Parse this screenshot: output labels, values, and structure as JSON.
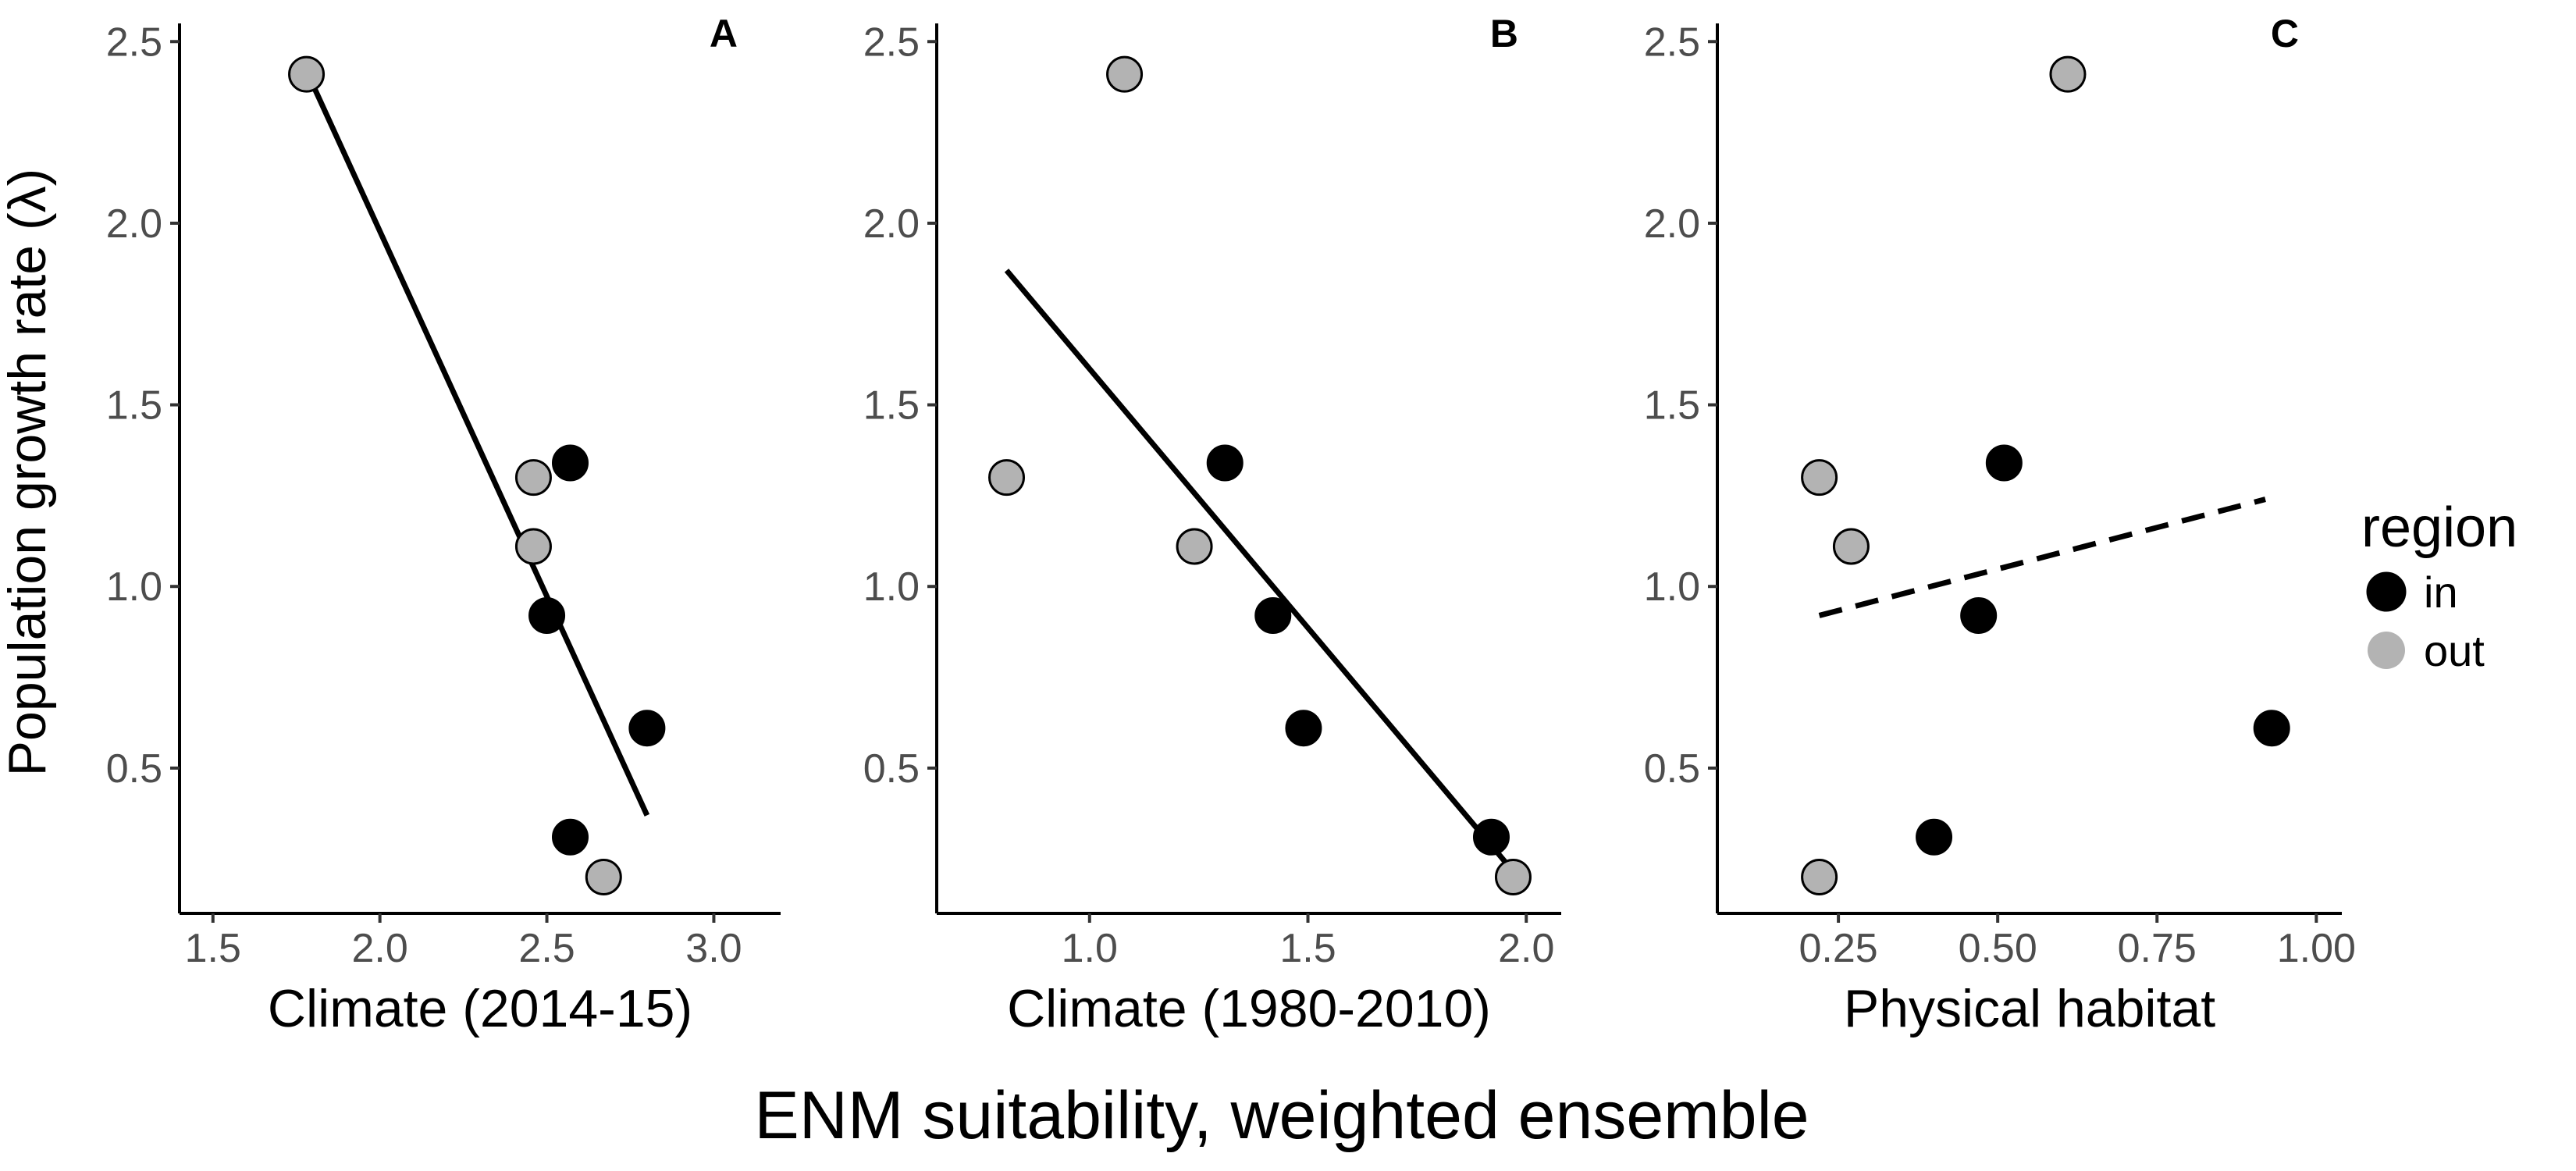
{
  "figure": {
    "ylabel": "Population growth rate (λ)",
    "xlabel": "ENM suitability, weighted ensemble",
    "legend": {
      "title": "region",
      "entries": [
        {
          "label": "in",
          "color": "#000000"
        },
        {
          "label": "out",
          "color": "#b3b3b3"
        }
      ]
    }
  },
  "colors": {
    "in": "#000000",
    "out": "#b3b3b3",
    "outline": "#000000",
    "fit": "#000000"
  },
  "chart_data": [
    {
      "type": "scatter",
      "panel": "A",
      "xlabel": "Climate (2014-15)",
      "ylabel": "Population growth rate (λ)",
      "xlim": [
        1.4,
        3.2
      ],
      "ylim": [
        0.1,
        2.55
      ],
      "xticks": [
        1.5,
        2.0,
        2.5,
        3.0
      ],
      "xtick_labels": [
        "1.5",
        "2.0",
        "2.5",
        "3.0"
      ],
      "yticks": [
        0.5,
        1.0,
        1.5,
        2.0,
        2.5
      ],
      "ytick_labels": [
        "0.5",
        "1.0",
        "1.5",
        "2.0",
        "2.5"
      ],
      "grid": false,
      "points": [
        {
          "x": 1.78,
          "y": 2.41,
          "region": "out"
        },
        {
          "x": 2.46,
          "y": 1.3,
          "region": "out"
        },
        {
          "x": 2.46,
          "y": 1.11,
          "region": "out"
        },
        {
          "x": 2.67,
          "y": 0.2,
          "region": "out"
        },
        {
          "x": 2.57,
          "y": 1.34,
          "region": "in"
        },
        {
          "x": 2.5,
          "y": 0.92,
          "region": "in"
        },
        {
          "x": 2.8,
          "y": 0.61,
          "region": "in"
        },
        {
          "x": 2.57,
          "y": 0.31,
          "region": "in"
        }
      ],
      "fit": {
        "x1": 1.78,
        "y1": 2.42,
        "x2": 2.8,
        "y2": 0.37,
        "style": "solid"
      }
    },
    {
      "type": "scatter",
      "panel": "B",
      "xlabel": "Climate (1980-2010)",
      "ylabel": "",
      "xlim": [
        0.65,
        2.08
      ],
      "ylim": [
        0.1,
        2.55
      ],
      "xticks": [
        1.0,
        1.5,
        2.0
      ],
      "xtick_labels": [
        "1.0",
        "1.5",
        "2.0"
      ],
      "yticks": [
        0.5,
        1.0,
        1.5,
        2.0,
        2.5
      ],
      "ytick_labels": [
        "0.5",
        "1.0",
        "1.5",
        "2.0",
        "2.5"
      ],
      "grid": false,
      "points": [
        {
          "x": 1.08,
          "y": 2.41,
          "region": "out"
        },
        {
          "x": 0.81,
          "y": 1.3,
          "region": "out"
        },
        {
          "x": 1.24,
          "y": 1.11,
          "region": "out"
        },
        {
          "x": 1.97,
          "y": 0.2,
          "region": "out"
        },
        {
          "x": 1.31,
          "y": 1.34,
          "region": "in"
        },
        {
          "x": 1.42,
          "y": 0.92,
          "region": "in"
        },
        {
          "x": 1.49,
          "y": 0.61,
          "region": "in"
        },
        {
          "x": 1.92,
          "y": 0.31,
          "region": "in"
        }
      ],
      "fit": {
        "x1": 0.81,
        "y1": 1.87,
        "x2": 1.96,
        "y2": 0.23,
        "style": "solid"
      }
    },
    {
      "type": "scatter",
      "panel": "C",
      "xlabel": "Physical habitat",
      "ylabel": "",
      "xlim": [
        0.06,
        1.04
      ],
      "ylim": [
        0.1,
        2.55
      ],
      "xticks": [
        0.25,
        0.5,
        0.75,
        1.0
      ],
      "xtick_labels": [
        "0.25",
        "0.50",
        "0.75",
        "1.00"
      ],
      "yticks": [
        0.5,
        1.0,
        1.5,
        2.0,
        2.5
      ],
      "ytick_labels": [
        "0.5",
        "1.0",
        "1.5",
        "2.0",
        "2.5"
      ],
      "grid": false,
      "points": [
        {
          "x": 0.61,
          "y": 2.41,
          "region": "out"
        },
        {
          "x": 0.22,
          "y": 1.3,
          "region": "out"
        },
        {
          "x": 0.27,
          "y": 1.11,
          "region": "out"
        },
        {
          "x": 0.22,
          "y": 0.2,
          "region": "out"
        },
        {
          "x": 0.51,
          "y": 1.34,
          "region": "in"
        },
        {
          "x": 0.47,
          "y": 0.92,
          "region": "in"
        },
        {
          "x": 0.93,
          "y": 0.61,
          "region": "in"
        },
        {
          "x": 0.4,
          "y": 0.31,
          "region": "in"
        }
      ],
      "fit": {
        "x1": 0.22,
        "y1": 0.92,
        "x2": 0.92,
        "y2": 1.24,
        "style": "dashed"
      }
    }
  ]
}
